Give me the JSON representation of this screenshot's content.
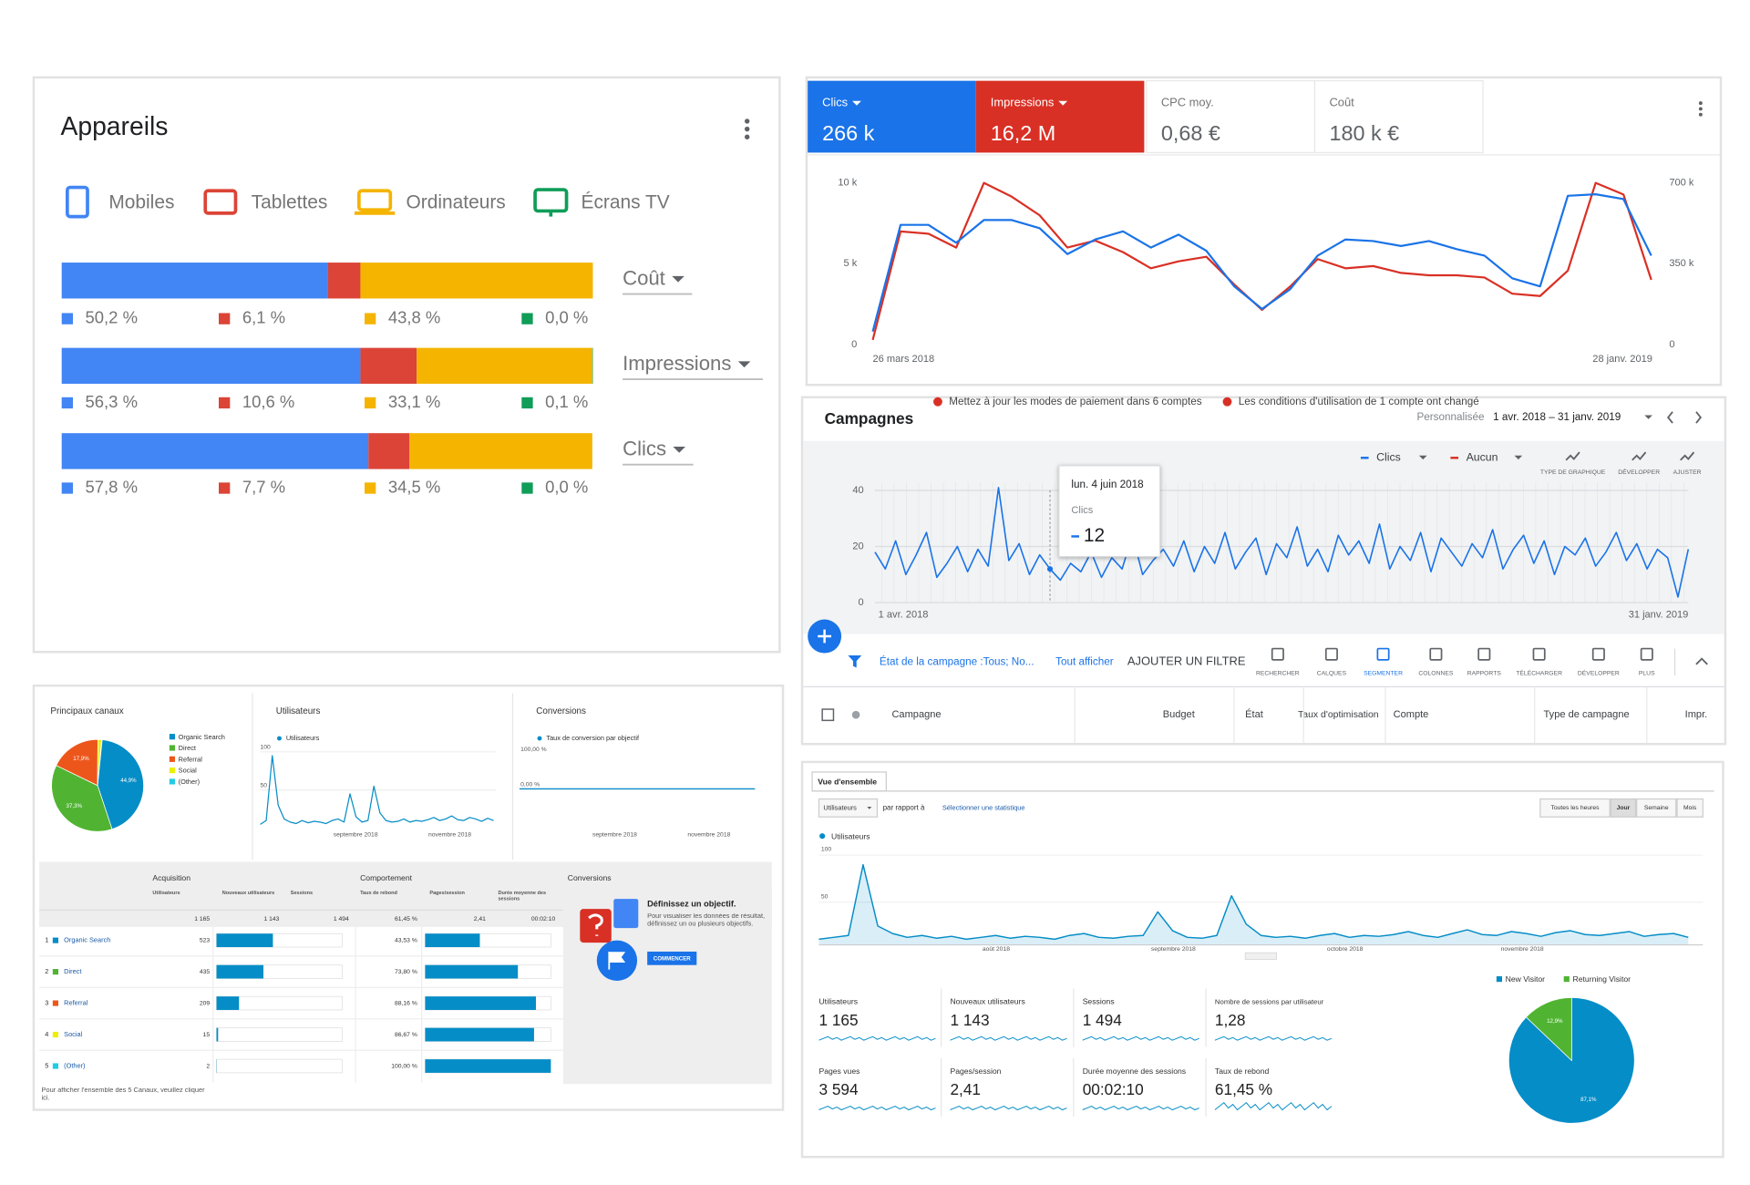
{
  "devices": {
    "title": "Appareils",
    "legend": [
      {
        "name": "Mobiles",
        "color": "#4285f4"
      },
      {
        "name": "Tablettes",
        "color": "#db4437"
      },
      {
        "name": "Ordinateurs",
        "color": "#f4b400"
      },
      {
        "name": "Écrans TV",
        "color": "#0f9d58"
      }
    ],
    "rows": [
      {
        "metric": "Coût",
        "values": [
          50.2,
          6.1,
          43.8,
          0.0
        ],
        "value_labels": [
          "50,2 %",
          "6,1 %",
          "43,8 %",
          "0,0 %"
        ]
      },
      {
        "metric": "Impressions",
        "values": [
          56.3,
          10.6,
          33.1,
          0.1
        ],
        "value_labels": [
          "56,3 %",
          "10,6 %",
          "33,1 %",
          "0,1 %"
        ]
      },
      {
        "metric": "Clics",
        "values": [
          57.8,
          7.7,
          34.5,
          0.0
        ],
        "value_labels": [
          "57,8 %",
          "7,7 %",
          "34,5 %",
          "0,0 %"
        ]
      }
    ]
  },
  "ads": {
    "tabs": [
      {
        "label": "Clics",
        "value": "266 k",
        "color": "#1a73e8"
      },
      {
        "label": "Impressions",
        "value": "16,2 M",
        "color": "#d93025"
      },
      {
        "label": "CPC moy.",
        "value": "0,68 €"
      },
      {
        "label": "Coût",
        "value": "180 k €"
      }
    ],
    "chart_data": {
      "type": "line",
      "x_labels": [
        "26 mars 2018",
        "28 janv. 2019"
      ],
      "ylim": [
        0,
        10000
      ],
      "yticks": [
        0,
        {
          "value": 5000,
          "label": "5 k"
        },
        {
          "value": 10000,
          "label": "10 k"
        }
      ],
      "y2lim": [
        0,
        700000
      ],
      "y2ticks": [
        0,
        {
          "value": 350000,
          "label": "350 k"
        },
        {
          "value": 700000,
          "label": "700 k"
        }
      ],
      "series": [
        {
          "name": "Clics",
          "color": "#1a73e8",
          "values": [
            800,
            7400,
            7400,
            6300,
            7700,
            7700,
            7200,
            5600,
            6500,
            7000,
            6000,
            6800,
            5800,
            3600,
            2200,
            3400,
            5500,
            6500,
            6400,
            6100,
            6400,
            5900,
            5500,
            4100,
            3600,
            9200,
            9300,
            9000,
            5500
          ]
        },
        {
          "name": "Impressions",
          "color": "#d93025",
          "axis": "y2",
          "values": [
            20000,
            490000,
            480000,
            420000,
            700000,
            640000,
            560000,
            420000,
            450000,
            400000,
            330000,
            360000,
            380000,
            260000,
            150000,
            250000,
            370000,
            330000,
            340000,
            310000,
            300000,
            300000,
            290000,
            220000,
            210000,
            320000,
            700000,
            650000,
            280000
          ]
        }
      ]
    }
  },
  "campaigns": {
    "title": "Campagnes",
    "notices": [
      "Mettez à jour les modes de paiement dans 6 comptes",
      "Les conditions d'utilisation de 1 compte ont changé"
    ],
    "period": "Personnalisée",
    "date_range": "1 avr. 2018 – 31 janv. 2019",
    "compare": "Aucun",
    "buttons": [
      "TYPE DE GRAPHIQUE",
      "DÉVELOPPER",
      "AJUSTER"
    ],
    "chart_data": {
      "type": "line",
      "x_labels": [
        "1 avr. 2018",
        "31 janv. 2019"
      ],
      "ylim": [
        0,
        40
      ],
      "yticks": [
        0,
        20,
        40
      ],
      "grid": true,
      "series": [
        {
          "name": "Clics",
          "color": "#1a73e8",
          "values": [
            18,
            12,
            22,
            10,
            17,
            25,
            9,
            14,
            20,
            11,
            19,
            13,
            41,
            15,
            21,
            10,
            17,
            12,
            8,
            14,
            11,
            18,
            9,
            16,
            12,
            24,
            10,
            15,
            19,
            13,
            22,
            11,
            20,
            14,
            25,
            12,
            18,
            23,
            10,
            21,
            16,
            27,
            13,
            19,
            11,
            24,
            17,
            22,
            14,
            28,
            12,
            20,
            15,
            25,
            11,
            23,
            18,
            13,
            21,
            16,
            26,
            12,
            19,
            24,
            14,
            22,
            10,
            20,
            17,
            23,
            13,
            18,
            25,
            15,
            21,
            12,
            19,
            16,
            2,
            19
          ]
        }
      ]
    },
    "tooltip": {
      "date": "lun. 4 juin 2018",
      "metric": "Clics",
      "value": 12
    },
    "filter": {
      "label": "État de la campagne : ",
      "value": "Tous; No...",
      "show_all": "Tout afficher",
      "add": "AJOUTER UN FILTRE"
    },
    "toolbar": [
      "RECHERCHER",
      "CALQUES",
      "SEGMENTER",
      "COLONNES",
      "RAPPORTS",
      "TÉLÉCHARGER",
      "DÉVELOPPER",
      "PLUS"
    ],
    "columns": [
      "Campagne",
      "Budget",
      "État",
      "Taux d'optimisation",
      "Compte",
      "Type de campagne",
      "Impr."
    ]
  },
  "channels": {
    "pie": {
      "title": "Principaux canaux",
      "series": [
        {
          "name": "Organic Search",
          "color": "#058dc7",
          "value": 44.9,
          "label": "44,9%"
        },
        {
          "name": "Direct",
          "color": "#50b432",
          "value": 37.3,
          "label": "37,3%"
        },
        {
          "name": "Referral",
          "color": "#ed561b",
          "value": 17.9,
          "label": "17,9%"
        },
        {
          "name": "Social",
          "color": "#edef00",
          "value": 1.3
        },
        {
          "name": "(Other)",
          "color": "#24cbe5",
          "value": 0.2
        }
      ]
    },
    "users_chart": {
      "type": "line",
      "title": "Utilisateurs",
      "legend": "Utilisateurs",
      "color": "#058dc7",
      "ylim": [
        0,
        100
      ],
      "yticks": [
        50,
        100
      ],
      "x_labels": [
        "septembre 2018",
        "novembre 2018"
      ],
      "values": [
        5,
        10,
        95,
        30,
        12,
        8,
        6,
        10,
        7,
        9,
        8,
        6,
        10,
        12,
        8,
        45,
        15,
        8,
        10,
        55,
        20,
        10,
        8,
        9,
        12,
        8,
        10,
        9,
        11,
        14,
        10,
        12,
        16,
        11,
        10,
        14,
        12,
        9,
        13,
        10
      ]
    },
    "conversions_chart": {
      "type": "line",
      "title": "Conversions",
      "legend": "Taux de conversion par objectif",
      "color": "#058dc7",
      "ylim": [
        0,
        100
      ],
      "yticks": [
        {
          "value": 100,
          "label": "100,00 %"
        },
        {
          "value": 0,
          "label": "0,00 %"
        }
      ],
      "x_labels": [
        "septembre 2018",
        "novembre 2018"
      ],
      "values": [
        0,
        0
      ]
    },
    "table": {
      "groups": [
        "Acquisition",
        "Comportement",
        "Conversions"
      ],
      "columns": [
        "Utilisateurs",
        "Nouveaux utilisateurs",
        "Sessions",
        "Taux de rebond",
        "Pages/session",
        "Durée moyenne des sessions"
      ],
      "totals": [
        {
          "value": 1165,
          "label": "1 165"
        },
        {
          "value": 1143,
          "label": "1 143"
        },
        {
          "value": 1494,
          "label": "1 494"
        },
        {
          "value": 61.45,
          "label": "61,45 %"
        },
        {
          "value": 2.41,
          "label": "2,41"
        },
        "00:02:10"
      ],
      "rows": [
        {
          "rank": 1,
          "name": "Organic Search",
          "users": 523,
          "bounce": {
            "value": 43.53,
            "label": "43,53 %"
          }
        },
        {
          "rank": 2,
          "name": "Direct",
          "users": 435,
          "bounce": {
            "value": 73.8,
            "label": "73,80 %"
          }
        },
        {
          "rank": 3,
          "name": "Referral",
          "users": 209,
          "bounce": {
            "value": 88.16,
            "label": "88,16 %"
          }
        },
        {
          "rank": 4,
          "name": "Social",
          "users": 15,
          "bounce": {
            "value": 86.67,
            "label": "86,67 %"
          }
        },
        {
          "rank": 5,
          "name": "(Other)",
          "users": 2,
          "bounce": {
            "value": 100,
            "label": "100,00 %"
          }
        }
      ]
    },
    "goal": {
      "title": "Définissez un objectif.",
      "text": "Pour visualiser les données de résultat, définissez un ou plusieurs objectifs.",
      "button": "COMMENCER"
    },
    "footer": "Pour afficher l'ensemble des 5 Canaux, veuillez cliquer ici."
  },
  "overview": {
    "tab": "Vue d'ensemble",
    "metric": "Utilisateurs",
    "compare": "par rapport à",
    "select": "Sélectionner une statistique",
    "granularity": [
      "Toutes les heures",
      "Jour",
      "Semaine",
      "Mois"
    ],
    "chart_data": {
      "type": "area",
      "legend": "Utilisateurs",
      "color": "#058dc7",
      "ylim": [
        0,
        100
      ],
      "yticks": [
        50,
        100
      ],
      "x_labels": [
        "août 2018",
        "septembre 2018",
        "octobre 2018",
        "novembre 2018"
      ],
      "values": [
        6,
        8,
        10,
        85,
        20,
        12,
        8,
        10,
        7,
        9,
        6,
        8,
        10,
        7,
        9,
        8,
        6,
        10,
        12,
        8,
        7,
        9,
        10,
        35,
        15,
        8,
        7,
        10,
        52,
        22,
        10,
        8,
        9,
        7,
        10,
        12,
        8,
        10,
        9,
        11,
        14,
        10,
        8,
        12,
        16,
        11,
        10,
        14,
        12,
        9,
        13,
        15,
        11,
        10,
        12,
        14,
        9,
        11,
        12,
        8
      ]
    },
    "metrics": [
      {
        "label": "Utilisateurs",
        "value": "1 165"
      },
      {
        "label": "Nouveaux utilisateurs",
        "value": "1 143"
      },
      {
        "label": "Sessions",
        "value": "1 494"
      },
      {
        "label": "Nombre de sessions par utilisateur",
        "value": "1,28"
      },
      {
        "label": "Pages vues",
        "value": "3 594"
      },
      {
        "label": "Pages/session",
        "value": "2,41"
      },
      {
        "label": "Durée moyenne des sessions",
        "value": "00:02:10"
      },
      {
        "label": "Taux de rebond",
        "value": "61,45 %"
      }
    ],
    "visitors": {
      "type": "pie",
      "series": [
        {
          "name": "New Visitor",
          "color": "#058dc7",
          "value": 87.1,
          "label": "87,1%"
        },
        {
          "name": "Returning Visitor",
          "color": "#50b432",
          "value": 12.9,
          "label": "12,9%"
        }
      ]
    }
  }
}
